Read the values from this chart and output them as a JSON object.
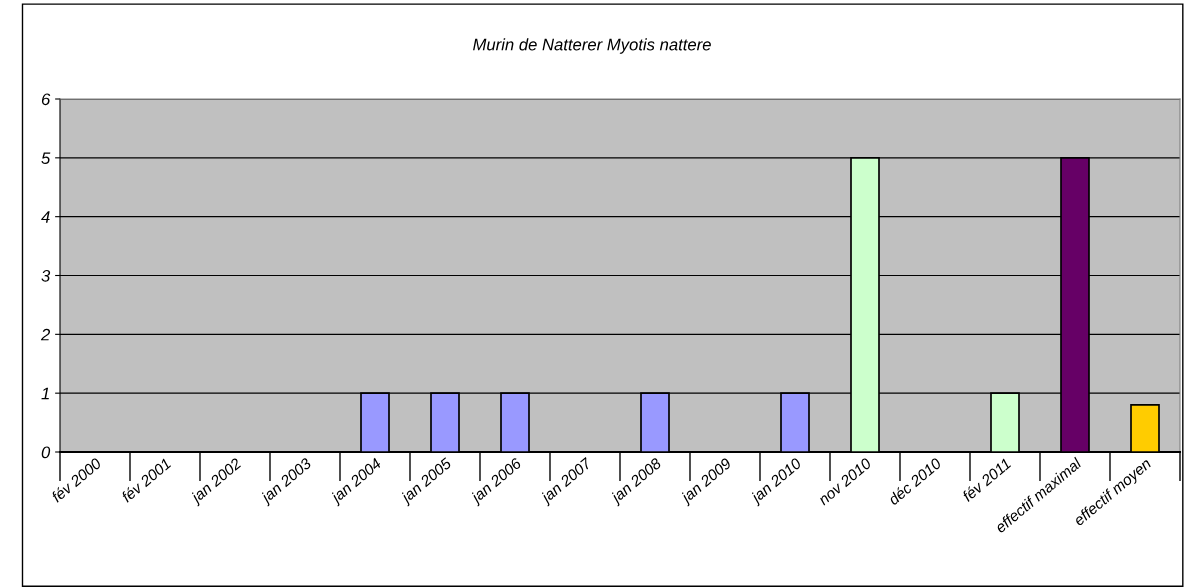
{
  "chart_data": {
    "type": "bar",
    "title": "Murin de Natterer Myotis nattere",
    "categories": [
      "fév 2000",
      "fév 2001",
      "jan 2002",
      "jan 2003",
      "jan 2004",
      "jan 2005",
      "jan 2006",
      "jan 2007",
      "jan 2008",
      "jan 2009",
      "jan 2010",
      "nov 2010",
      "déc 2010",
      "fév 2011",
      "effectif maximal",
      "effectif moyen"
    ],
    "values": [
      null,
      null,
      null,
      null,
      1,
      1,
      1,
      null,
      1,
      null,
      1,
      5,
      null,
      1,
      5,
      0.8
    ],
    "colors": [
      "#9999ff",
      "#9999ff",
      "#9999ff",
      "#9999ff",
      "#9999ff",
      "#9999ff",
      "#9999ff",
      "#9999ff",
      "#9999ff",
      "#9999ff",
      "#9999ff",
      "#ccffcc",
      "#ccffcc",
      "#ccffcc",
      "#660066",
      "#ffcc00"
    ],
    "ylim": [
      0,
      6
    ],
    "yticks": [
      0,
      1,
      2,
      3,
      4,
      5,
      6
    ],
    "grid": "y"
  }
}
